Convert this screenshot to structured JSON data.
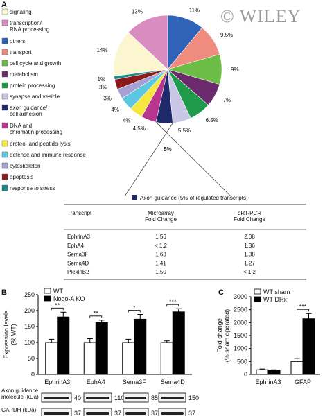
{
  "figure": {
    "watermark": "© WILEY",
    "panels": [
      "A",
      "B",
      "C"
    ]
  },
  "chart_data": [
    {
      "type": "pie",
      "categories": [
        "signaling",
        "transcription/\nRNA processing",
        "others",
        "transport",
        "cell cycle and growth",
        "metabolism",
        "protein processing",
        "synapse and vesicle",
        "axon guidance/\ncell adhesion",
        "DNA and\nchromatin processing",
        "proteo- and peptido-lysis",
        "defense and immune response",
        "cytoskeleton",
        "apoptosis",
        "response to stress"
      ],
      "values": [
        14,
        13,
        11,
        9.5,
        9,
        7,
        6.5,
        5.5,
        5,
        4.5,
        4,
        4,
        3,
        3,
        1
      ],
      "value_labels": [
        "14%",
        "13%",
        "11%",
        "9.5%",
        "9%",
        "7%",
        "6.5%",
        "5.5%",
        "5%",
        "4.5%",
        "4%",
        "4%",
        "3%",
        "3%",
        "1%"
      ],
      "colors": [
        "#fbf6cf",
        "#d98cc0",
        "#2f63b8",
        "#f08b80",
        "#6cbd45",
        "#6b2a6b",
        "#1f9a4a",
        "#c9c6e6",
        "#1f2a6b",
        "#b8348f",
        "#f5e640",
        "#5cc7e0",
        "#a7a0d2",
        "#8b1a1a",
        "#1a8a8a"
      ]
    },
    {
      "type": "bar",
      "y_label": "Expression levels\n(% WT)",
      "categories": [
        "EphrinA3",
        "EphA4",
        "Sema3F",
        "Sema4D"
      ],
      "ylim": [
        0,
        250
      ],
      "yticks": [
        0,
        50,
        100,
        150,
        200,
        250
      ],
      "series": [
        {
          "name": "WT",
          "color": "#ffffff",
          "values": [
            100,
            100,
            100,
            100
          ],
          "errors": [
            10,
            12,
            10,
            5
          ]
        },
        {
          "name": "Nogo-A KO",
          "color": "#000000",
          "values": [
            180,
            162,
            173,
            196
          ],
          "errors": [
            15,
            8,
            15,
            10
          ]
        }
      ],
      "significance": [
        "**",
        "**",
        "*",
        "***"
      ]
    },
    {
      "type": "bar",
      "y_label": "Fold change\n(% sham operated)",
      "categories": [
        "EphrinA3",
        "GFAP"
      ],
      "ylim": [
        0,
        3000
      ],
      "yticks": [
        0,
        500,
        1000,
        1500,
        2000,
        2500,
        3000
      ],
      "series": [
        {
          "name": "WT sham",
          "color": "#ffffff",
          "values": [
            180,
            500
          ],
          "errors": [
            30,
            120
          ]
        },
        {
          "name": "WT DHx",
          "color": "#000000",
          "values": [
            160,
            2150
          ],
          "errors": [
            20,
            200
          ]
        }
      ],
      "significance": [
        null,
        "***"
      ]
    }
  ],
  "table": {
    "title": "Axon guidance (5% of regulated transcripts)",
    "columns": [
      "Transcript",
      "Microarray\nFold Change",
      "qRT-PCR\nFold Change"
    ],
    "rows": [
      [
        "EphrinA3",
        "1.56",
        "2.08"
      ],
      [
        "EphA4",
        "< 1.2",
        "1.36"
      ],
      [
        "Sema3F",
        "1.63",
        "1.38"
      ],
      [
        "Sema4D",
        "1.41",
        "1.27"
      ],
      [
        "PlexinB2",
        "1.50",
        "< 1.2"
      ]
    ]
  },
  "blots": {
    "labels": [
      "Axon guidance\nmolecule (kDa)",
      "GAPDH (kDa)"
    ],
    "sizes": [
      [
        40,
        110,
        85,
        150
      ],
      [
        37,
        37,
        37,
        37
      ]
    ]
  }
}
